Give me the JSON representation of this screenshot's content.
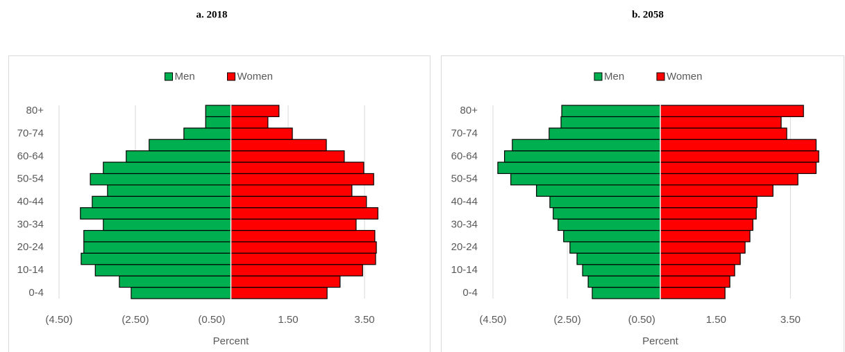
{
  "chart_data": [
    {
      "type": "bar",
      "title": "a. 2018",
      "xlabel": "Percent",
      "categories": [
        "0-4",
        null,
        "10-14",
        null,
        "20-24",
        null,
        "30-34",
        null,
        "40-44",
        null,
        "50-54",
        null,
        "60-64",
        null,
        "70-74",
        null,
        "80+"
      ],
      "series": [
        {
          "name": "Men",
          "color": "#00b050",
          "values": [
            -2.61,
            -2.92,
            -3.55,
            -3.92,
            -3.85,
            -3.85,
            -3.34,
            -3.94,
            -3.63,
            -3.23,
            -3.68,
            -3.34,
            -2.74,
            -2.14,
            -1.23,
            -0.66,
            -0.66
          ]
        },
        {
          "name": "Women",
          "color": "#ff0000",
          "values": [
            2.52,
            2.86,
            3.45,
            3.79,
            3.81,
            3.77,
            3.28,
            3.85,
            3.55,
            3.17,
            3.74,
            3.48,
            2.97,
            2.5,
            1.61,
            0.97,
            1.26
          ]
        }
      ],
      "xlim": [
        -4.5,
        4.5
      ],
      "xticks": [
        {
          "value": -4.5,
          "label": "(4.50)"
        },
        {
          "value": -2.5,
          "label": "(2.50)"
        },
        {
          "value": -0.5,
          "label": "(0.50)"
        },
        {
          "value": 1.5,
          "label": "1.50"
        },
        {
          "value": 3.5,
          "label": "3.50"
        }
      ],
      "grid": true,
      "legend": "top"
    },
    {
      "type": "bar",
      "title": "b. 2058",
      "xlabel": "Percent",
      "categories": [
        "0-4",
        null,
        "10-14",
        null,
        "20-24",
        null,
        "30-34",
        null,
        "40-44",
        null,
        "50-54",
        null,
        "60-64",
        null,
        "70-74",
        null,
        "80+"
      ],
      "series": [
        {
          "name": "Men",
          "color": "#00b050",
          "values": [
            -1.83,
            -1.94,
            -2.09,
            -2.24,
            -2.43,
            -2.6,
            -2.75,
            -2.88,
            -2.97,
            -3.33,
            -4.02,
            -4.37,
            -4.19,
            -3.98,
            -2.99,
            -2.67,
            -2.65
          ]
        },
        {
          "name": "Women",
          "color": "#ff0000",
          "values": [
            1.74,
            1.87,
            2.0,
            2.15,
            2.28,
            2.41,
            2.49,
            2.58,
            2.6,
            3.03,
            3.7,
            4.19,
            4.26,
            4.19,
            3.4,
            3.25,
            3.85
          ]
        }
      ],
      "xlim": [
        -4.5,
        4.5
      ],
      "xticks": [
        {
          "value": -4.5,
          "label": "(4.50)"
        },
        {
          "value": -2.5,
          "label": "(2.50)"
        },
        {
          "value": -0.5,
          "label": "(0.50)"
        },
        {
          "value": 1.5,
          "label": "1.50"
        },
        {
          "value": 3.5,
          "label": "3.50"
        }
      ],
      "grid": true,
      "legend": "top"
    }
  ]
}
